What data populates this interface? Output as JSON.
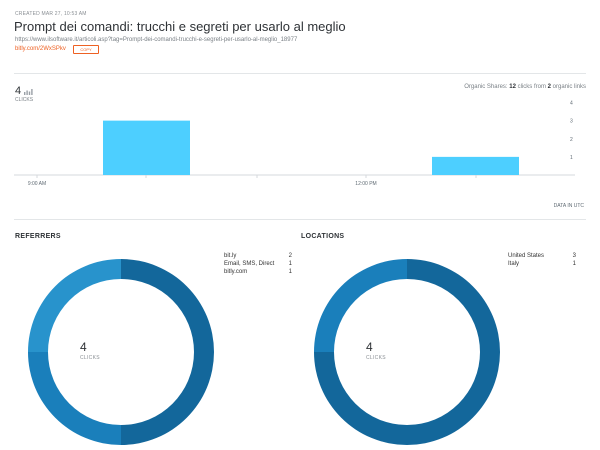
{
  "link": {
    "created": "CREATED MAR 27, 10:53 AM",
    "title": "Prompt dei comandi: trucchi e segreti per usarlo al meglio",
    "url": "https://www.ilsoftware.it/articoli.asp?tag=Prompt-dei-comandi-trucchi-e-segreti-per-usarlo-al-meglio_18977",
    "short_url": "bitly.com/2WxSPkv",
    "copy_label": "COPY"
  },
  "summary": {
    "total_clicks": "4",
    "clicks_label": "CLICKS",
    "organic_prefix": "Organic Shares: ",
    "organic_clicks": "12",
    "organic_middle": " clicks from ",
    "organic_links": "2",
    "organic_suffix": " organic links",
    "data_tz": "DATA IN UTC"
  },
  "chart_data": {
    "type": "bar",
    "x_tick_labels": [
      "9:00 AM",
      "12:00 PM"
    ],
    "y_ticks": [
      1,
      2,
      3,
      4
    ],
    "ylim": [
      0,
      4
    ],
    "bars": [
      {
        "time": "9:30 AM",
        "value": 3
      },
      {
        "time": "12:30 PM",
        "value": 1
      }
    ],
    "color": "#4dcfff"
  },
  "referrers": {
    "heading": "REFERRERS",
    "total": "4",
    "total_label": "CLICKS",
    "items": [
      {
        "name": "bit.ly",
        "count": 2
      },
      {
        "name": "Email, SMS, Direct",
        "count": 1
      },
      {
        "name": "bitly.com",
        "count": 1
      }
    ],
    "colors": [
      "#13679b",
      "#1a7fbb",
      "#2893cc"
    ]
  },
  "locations": {
    "heading": "LOCATIONS",
    "total": "4",
    "total_label": "CLICKS",
    "items": [
      {
        "name": "United States",
        "count": 3
      },
      {
        "name": "Italy",
        "count": 1
      }
    ],
    "colors": [
      "#13679b",
      "#1a7fbb"
    ]
  }
}
